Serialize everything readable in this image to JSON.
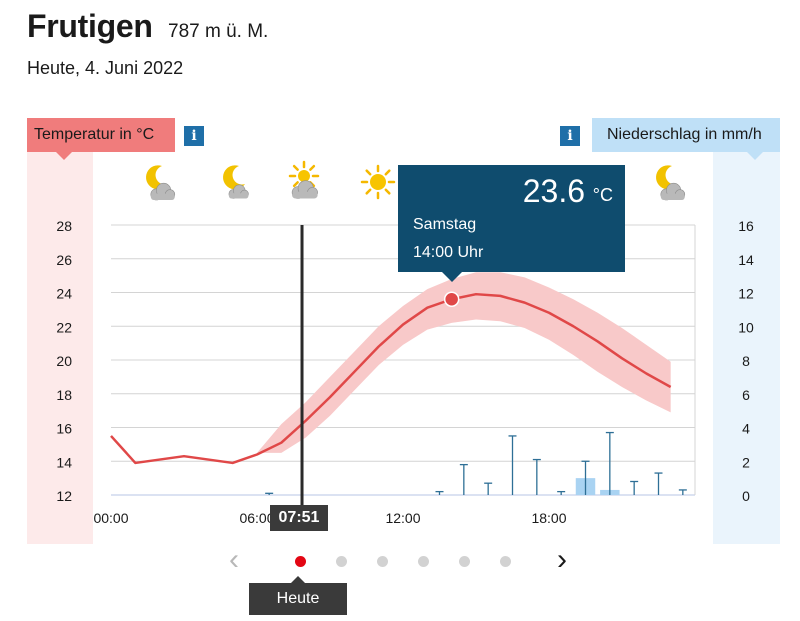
{
  "header": {
    "location": "Frutigen",
    "altitude": "787 m ü. M.",
    "date": "Heute, 4. Juni 2022"
  },
  "labels": {
    "temperature_axis": "Temperatur in °C",
    "precip_axis": "Niederschlag in mm/h",
    "info_icon": "i"
  },
  "weather_icons": [
    "moon-cloud-icon",
    "moon-icon",
    "sun-cloud-icon",
    "sun-icon",
    "moon-cloud-icon"
  ],
  "tooltip": {
    "value": "23.6",
    "unit": "°C",
    "day": "Samstag",
    "time": "14:00 Uhr"
  },
  "now_marker": "07:51",
  "navigation": {
    "prev": "‹",
    "next": "›",
    "dot_count": 6,
    "active_index": 0,
    "active_label": "Heute"
  },
  "colors": {
    "temperature_line": "#e04848",
    "temperature_band": "#f8c9c9",
    "precip_bar": "#2e6f96",
    "precip_band_bar": "#a9d3f2",
    "tooltip_bg": "#0f4c6e",
    "active_dot": "#e30613"
  },
  "chart_data": {
    "type": "line",
    "x_ticks": [
      "00:00",
      "06:00",
      "12:00",
      "18:00"
    ],
    "x_range": [
      0,
      24
    ],
    "y_left": {
      "ticks": [
        12,
        14,
        16,
        18,
        20,
        22,
        24,
        26,
        28
      ],
      "range": [
        12,
        28
      ]
    },
    "y_right": {
      "ticks": [
        0,
        2,
        4,
        6,
        8,
        10,
        12,
        14,
        16
      ],
      "range": [
        0,
        16
      ]
    },
    "grid": true,
    "temperature": {
      "x": [
        0,
        1,
        2,
        3,
        4,
        5,
        6,
        7,
        8,
        9,
        10,
        11,
        12,
        13,
        14,
        15,
        16,
        17,
        18,
        19,
        20,
        21,
        22,
        23
      ],
      "y": [
        15.5,
        13.9,
        14.1,
        14.3,
        14.1,
        13.9,
        14.4,
        15.1,
        16.4,
        17.8,
        19.3,
        20.8,
        22.1,
        23.1,
        23.6,
        23.9,
        23.8,
        23.4,
        22.8,
        22.0,
        21.1,
        20.1,
        19.2,
        18.4
      ]
    },
    "temperature_range": {
      "x": [
        6,
        7,
        8,
        9,
        10,
        11,
        12,
        13,
        14,
        15,
        16,
        17,
        18,
        19,
        20,
        21,
        22,
        23
      ],
      "low": [
        14.5,
        14.5,
        15.4,
        16.7,
        18.2,
        19.7,
        20.9,
        21.8,
        22.2,
        22.4,
        22.3,
        21.9,
        21.2,
        20.3,
        19.3,
        18.4,
        17.6,
        16.9
      ],
      "high": [
        14.5,
        16.2,
        17.5,
        19.0,
        20.5,
        22.0,
        23.2,
        24.2,
        24.8,
        25.2,
        25.2,
        24.9,
        24.3,
        23.6,
        22.8,
        21.9,
        20.9,
        19.9
      ]
    },
    "precipitation": {
      "x": [
        6.5,
        13.5,
        14.5,
        15.5,
        16.5,
        17.5,
        18.5,
        19.5,
        20.5,
        21.5,
        22.5,
        23.5
      ],
      "y": [
        0.1,
        0.2,
        1.8,
        0.7,
        3.5,
        2.1,
        0.2,
        2.0,
        3.7,
        0.8,
        1.3,
        0.3
      ]
    },
    "precipitation_range": {
      "x": [
        19.5,
        20.5
      ],
      "y": [
        1.0,
        0.3
      ]
    },
    "highlight": {
      "x": 14,
      "y": 23.6
    },
    "now_x": 7.85
  }
}
